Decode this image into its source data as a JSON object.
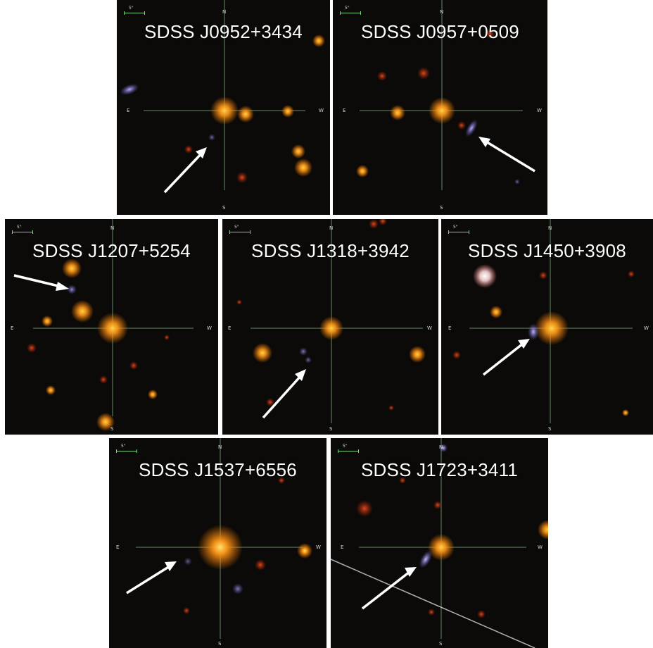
{
  "panels": [
    {
      "label": "SDSS J0952+3434",
      "north": "N",
      "south": "S",
      "east": "E",
      "west": "W",
      "scale": "5\""
    },
    {
      "label": "SDSS J0957+0509",
      "north": "N",
      "south": "S",
      "east": "E",
      "west": "W",
      "scale": "5\""
    },
    {
      "label": "SDSS J1207+5254",
      "north": "N",
      "south": "S",
      "east": "E",
      "west": "W",
      "scale": "5\""
    },
    {
      "label": "SDSS J1318+3942",
      "north": "N",
      "south": "S",
      "east": "E",
      "west": "W",
      "scale": "5\""
    },
    {
      "label": "SDSS J1450+3908",
      "north": "N",
      "south": "S",
      "east": "E",
      "west": "W",
      "scale": "5\""
    },
    {
      "label": "SDSS J1537+6556",
      "north": "N",
      "south": "S",
      "east": "E",
      "west": "W",
      "scale": "5\""
    },
    {
      "label": "SDSS J1723+3411",
      "north": "N",
      "south": "S",
      "east": "E",
      "west": "W",
      "scale": "5\""
    }
  ],
  "colors": {
    "background": "#0b0a08",
    "crosshair": "#8fbf8f",
    "arrow": "#ffffff",
    "target_glow": "#ff9a1a",
    "companion": "#9a8fd6"
  },
  "icons": [
    "arrow-icon",
    "crosshair-icon",
    "scale-bar-icon"
  ]
}
